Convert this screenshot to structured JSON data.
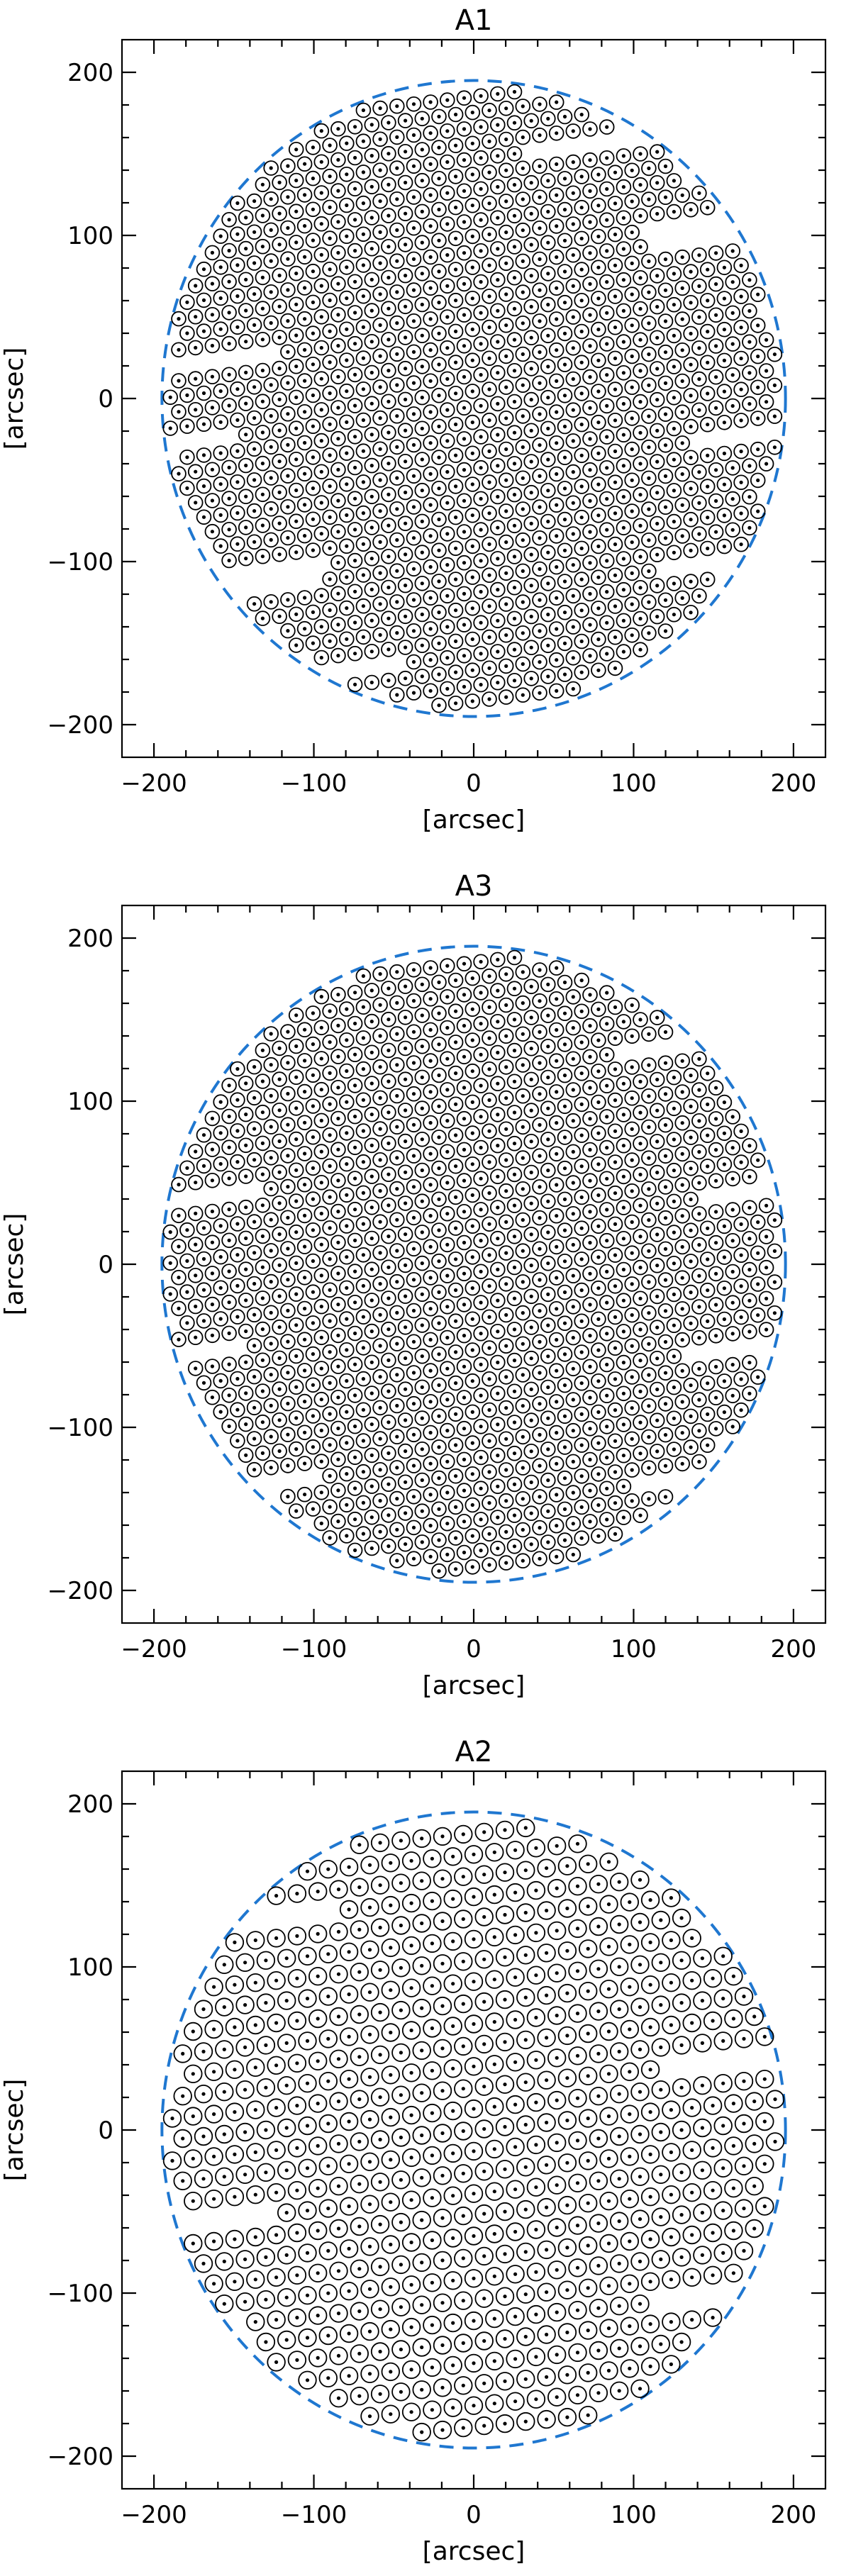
{
  "chart_data": [
    {
      "type": "scatter",
      "title": "A1",
      "xlabel": "[arcsec]",
      "ylabel": "[arcsec]",
      "xlim": [
        -220,
        220
      ],
      "ylim": [
        -220,
        220
      ],
      "xticks": [
        -200,
        -100,
        0,
        100,
        200
      ],
      "yticks": [
        -200,
        -100,
        0,
        100,
        200
      ],
      "xtick_labels": [
        "−200",
        "−100",
        "0",
        "100",
        "200"
      ],
      "ytick_labels": [
        "−200",
        "−100",
        "0",
        "100",
        "200"
      ],
      "field_radius": 195,
      "point_spacing": 10.5,
      "row_step": 9.5,
      "row_slope": 0.12,
      "gaps": [
        {
          "dir": "right",
          "y": 145,
          "len": 90
        },
        {
          "dir": "right",
          "y": 85,
          "len": 60
        },
        {
          "dir": "left",
          "y": 45,
          "len": 70
        },
        {
          "dir": "left",
          "y": -5,
          "len": 50
        },
        {
          "dir": "right",
          "y": -40,
          "len": 60
        },
        {
          "dir": "left",
          "y": -95,
          "len": 70
        },
        {
          "dir": "right",
          "y": -120,
          "len": 50
        },
        {
          "dir": "left",
          "y": -160,
          "len": 60
        }
      ]
    },
    {
      "type": "scatter",
      "title": "A3",
      "xlabel": "[arcsec]",
      "ylabel": "[arcsec]",
      "xlim": [
        -220,
        220
      ],
      "ylim": [
        -220,
        220
      ],
      "xticks": [
        -200,
        -100,
        0,
        100,
        200
      ],
      "yticks": [
        -200,
        -100,
        0,
        100,
        200
      ],
      "xtick_labels": [
        "−200",
        "−100",
        "0",
        "100",
        "200"
      ],
      "ytick_labels": [
        "−200",
        "−100",
        "0",
        "100",
        "200"
      ],
      "field_radius": 195,
      "point_spacing": 10.5,
      "row_step": 9.5,
      "row_slope": 0.12,
      "gaps": [
        {
          "dir": "right",
          "y": 120,
          "len": 60
        },
        {
          "dir": "left",
          "y": 65,
          "len": 60
        },
        {
          "dir": "right",
          "y": 25,
          "len": 50
        },
        {
          "dir": "left",
          "y": -30,
          "len": 50
        },
        {
          "dir": "right",
          "y": -75,
          "len": 60
        },
        {
          "dir": "left",
          "y": -120,
          "len": 50
        },
        {
          "dir": "right",
          "y": -150,
          "len": 40
        }
      ]
    },
    {
      "type": "scatter",
      "title": "A2",
      "xlabel": "[arcsec]",
      "ylabel": "[arcsec]",
      "xlim": [
        -220,
        220
      ],
      "ylim": [
        -220,
        220
      ],
      "xticks": [
        -200,
        -100,
        0,
        100,
        200
      ],
      "yticks": [
        -200,
        -100,
        0,
        100,
        200
      ],
      "xtick_labels": [
        "−200",
        "−100",
        "0",
        "100",
        "200"
      ],
      "ytick_labels": [
        "−200",
        "−100",
        "0",
        "100",
        "200"
      ],
      "field_radius": 195,
      "point_spacing": 13,
      "row_step": 13,
      "row_slope": 0.1,
      "gaps": [
        {
          "dir": "left",
          "y": 140,
          "len": 60
        },
        {
          "dir": "right",
          "y": 30,
          "len": 70
        },
        {
          "dir": "left",
          "y": -40,
          "len": 60
        },
        {
          "dir": "right",
          "y": -115,
          "len": 50
        }
      ]
    }
  ],
  "colors": {
    "field_circle": "#1f77d0",
    "fiber": "#000000",
    "axes": "#000000",
    "background": "#ffffff"
  }
}
